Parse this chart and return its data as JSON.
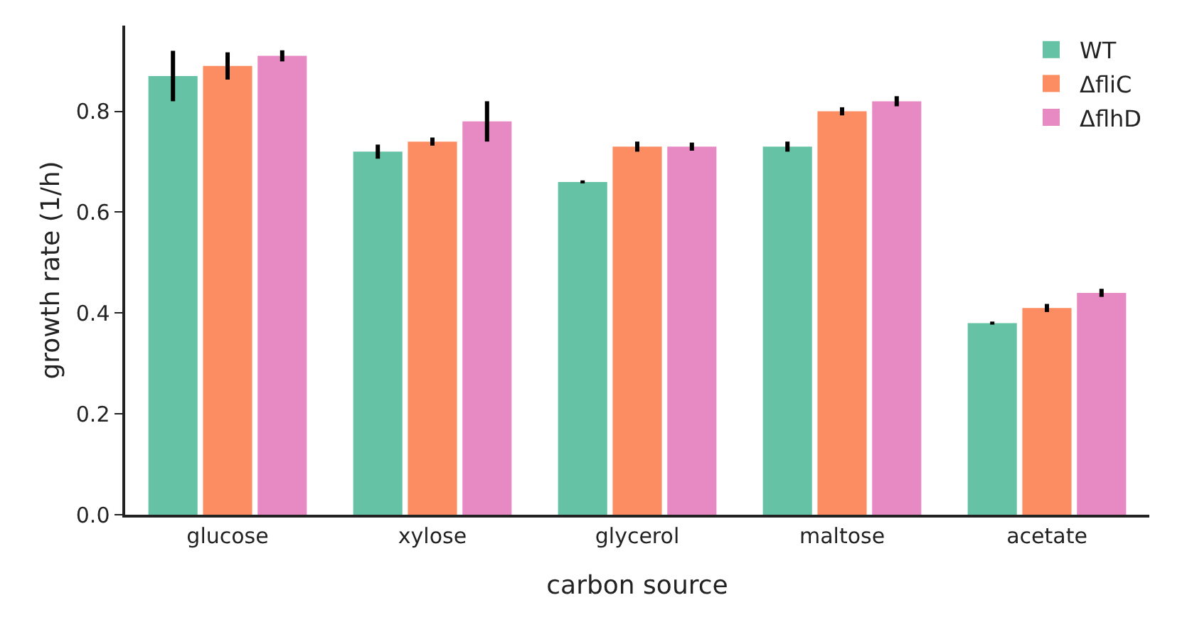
{
  "chart_data": {
    "type": "bar",
    "xlabel": "carbon source",
    "ylabel": "growth rate (1/h)",
    "categories": [
      "glucose",
      "xylose",
      "glycerol",
      "maltose",
      "acetate"
    ],
    "series": [
      {
        "name": "WT",
        "color": "#66c2a5",
        "values": [
          0.87,
          0.72,
          0.66,
          0.73,
          0.38
        ],
        "errors": [
          0.05,
          0.014,
          0.003,
          0.01,
          0.003
        ]
      },
      {
        "name": "ΔfliC",
        "color": "#fc8d62",
        "values": [
          0.89,
          0.74,
          0.73,
          0.8,
          0.41
        ],
        "errors": [
          0.027,
          0.008,
          0.01,
          0.008,
          0.008
        ]
      },
      {
        "name": "ΔflhD",
        "color": "#e78ac3",
        "values": [
          0.91,
          0.78,
          0.73,
          0.82,
          0.44
        ],
        "errors": [
          0.011,
          0.04,
          0.008,
          0.01,
          0.008
        ]
      }
    ],
    "ylim": [
      0,
      0.97
    ],
    "yticks": [
      {
        "value": 0,
        "label": "0.0"
      },
      0.2,
      0.4,
      0.6,
      0.8
    ],
    "grid": false,
    "legend": "top right"
  }
}
